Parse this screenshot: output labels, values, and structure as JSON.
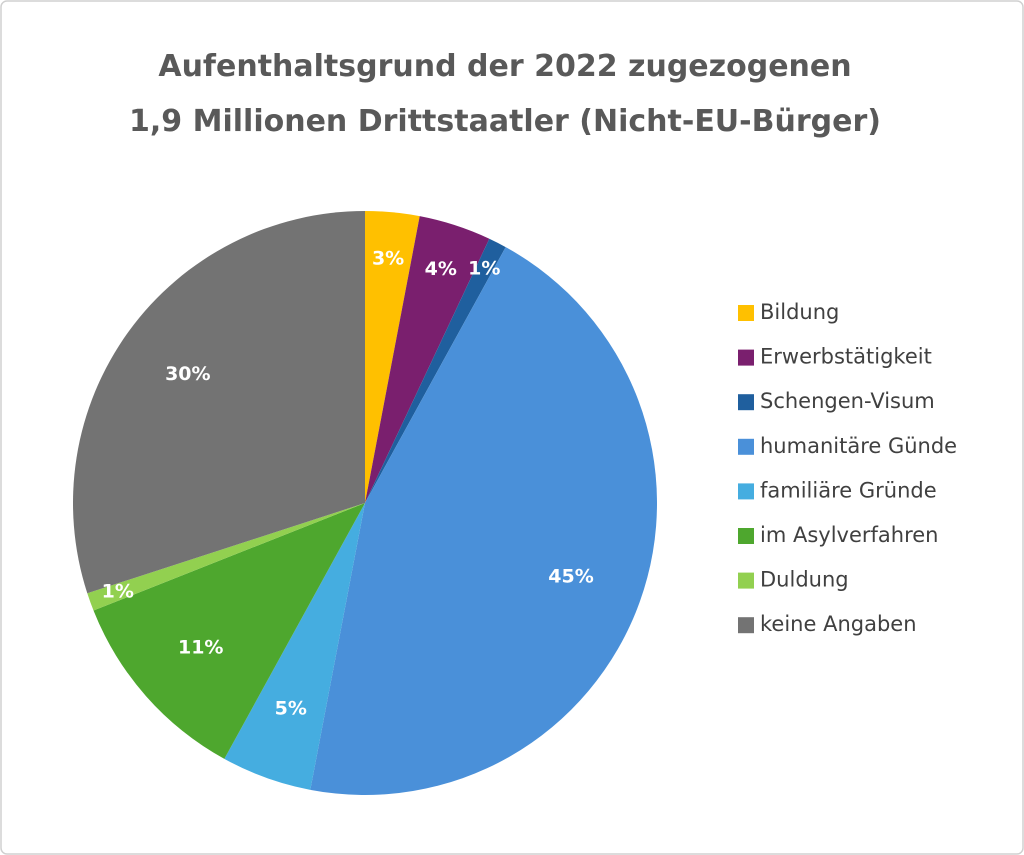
{
  "chart_data": {
    "type": "pie",
    "title": [
      "Aufenthaltsgrund der 2022 zugezogenen",
      "1,9 Millionen Drittstaatler (Nicht-EU-Bürger)"
    ],
    "categories": [
      "Bildung",
      "Erwerbstätigkeit",
      "Schengen-Visum",
      "humanitäre Günde",
      "familiäre Gründe",
      "im Asylverfahren",
      "Duldung",
      "keine Angaben"
    ],
    "values": [
      3,
      4,
      1,
      45,
      5,
      11,
      1,
      30
    ],
    "value_labels": [
      "3%",
      "4%",
      "1%",
      "45%",
      "5%",
      "11%",
      "1%",
      "30%"
    ],
    "colors": [
      "#ffc000",
      "#7a1f6e",
      "#1f5f9e",
      "#4a90d9",
      "#45ade0",
      "#4ea72e",
      "#92d050",
      "#737373"
    ],
    "legend": "right"
  }
}
